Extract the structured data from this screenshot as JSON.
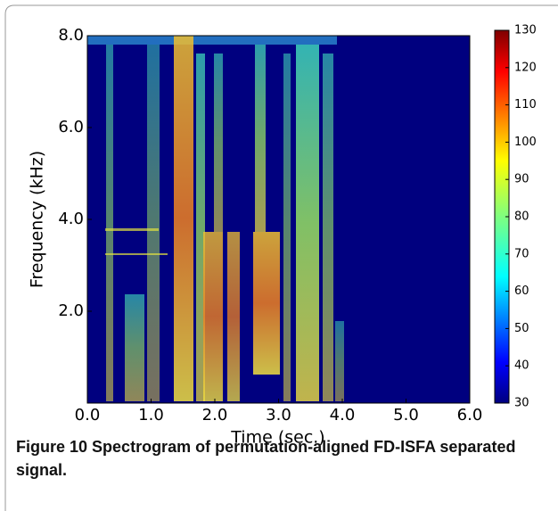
{
  "chart_data": {
    "type": "heatmap",
    "xlabel": "Time (sec.)",
    "ylabel": "Frequency (kHz)",
    "xlim": [
      0,
      6
    ],
    "xticks": [
      {
        "value": 0,
        "label": "0.0"
      },
      {
        "value": 1,
        "label": "1.0"
      },
      {
        "value": 2,
        "label": "2.0"
      },
      {
        "value": 3,
        "label": "3.0"
      },
      {
        "value": 4,
        "label": "4.0"
      },
      {
        "value": 5,
        "label": "5.0"
      },
      {
        "value": 6,
        "label": "6.0"
      }
    ],
    "ylim": [
      0,
      8
    ],
    "yticks": [
      {
        "value": 2,
        "label": "2.0"
      },
      {
        "value": 4,
        "label": "4.0"
      },
      {
        "value": 6,
        "label": "6.0"
      },
      {
        "value": 8,
        "label": "8.0"
      }
    ],
    "colorbar": {
      "lim": [
        30,
        130
      ],
      "ticks": [
        30,
        40,
        50,
        60,
        70,
        80,
        90,
        100,
        110,
        120,
        130
      ]
    }
  },
  "caption": {
    "label": "Figure 10",
    "text": "Spectrogram of permutation-aligned FD-ISFA separated signal."
  }
}
